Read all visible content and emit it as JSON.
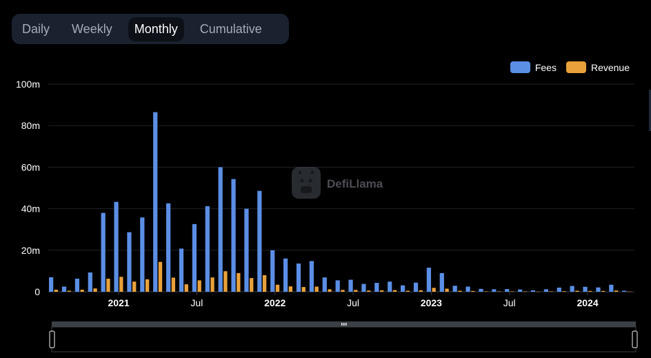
{
  "tabs": [
    {
      "label": "Daily",
      "active": false
    },
    {
      "label": "Weekly",
      "active": false
    },
    {
      "label": "Monthly",
      "active": true
    },
    {
      "label": "Cumulative",
      "active": false
    }
  ],
  "watermark": "DefiLlama",
  "colors": {
    "fees": "#5b8fe6",
    "revenue": "#e9a13b",
    "background": "#000000",
    "grid": "#1f2329"
  },
  "chart_data": {
    "type": "bar",
    "title": "",
    "xlabel": "",
    "ylabel": "",
    "ylim": [
      0,
      100000000
    ],
    "yticks": [
      {
        "value": 0,
        "label": "0"
      },
      {
        "value": 20000000,
        "label": "20m"
      },
      {
        "value": 40000000,
        "label": "40m"
      },
      {
        "value": 60000000,
        "label": "60m"
      },
      {
        "value": 80000000,
        "label": "80m"
      },
      {
        "value": 100000000,
        "label": "100m"
      }
    ],
    "xticks": [
      {
        "category": "2021-01",
        "label": "2021",
        "bold": true
      },
      {
        "category": "2021-07",
        "label": "Jul",
        "bold": false
      },
      {
        "category": "2022-01",
        "label": "2022",
        "bold": true
      },
      {
        "category": "2022-07",
        "label": "Jul",
        "bold": false
      },
      {
        "category": "2023-01",
        "label": "2023",
        "bold": true
      },
      {
        "category": "2023-07",
        "label": "Jul",
        "bold": false
      },
      {
        "category": "2024-01",
        "label": "2024",
        "bold": true
      }
    ],
    "legend_position": "top-right",
    "grid": true,
    "categories": [
      "2020-08",
      "2020-09",
      "2020-10",
      "2020-11",
      "2020-12",
      "2021-01",
      "2021-02",
      "2021-03",
      "2021-04",
      "2021-05",
      "2021-06",
      "2021-07",
      "2021-08",
      "2021-09",
      "2021-10",
      "2021-11",
      "2021-12",
      "2022-01",
      "2022-02",
      "2022-03",
      "2022-04",
      "2022-05",
      "2022-06",
      "2022-07",
      "2022-08",
      "2022-09",
      "2022-10",
      "2022-11",
      "2022-12",
      "2023-01",
      "2023-02",
      "2023-03",
      "2023-04",
      "2023-05",
      "2023-06",
      "2023-07",
      "2023-08",
      "2023-09",
      "2023-10",
      "2023-11",
      "2023-12",
      "2024-01",
      "2024-02",
      "2024-03",
      "2024-04"
    ],
    "series": [
      {
        "name": "Fees",
        "color": "#5b8fe6",
        "values": [
          7000000,
          2500000,
          6300000,
          9300000,
          38000000,
          43300000,
          28700000,
          35800000,
          86500000,
          42600000,
          20800000,
          32600000,
          41200000,
          60000000,
          54300000,
          40000000,
          48600000,
          20000000,
          16000000,
          13600000,
          14800000,
          6900000,
          5500000,
          5800000,
          3800000,
          4300000,
          4900000,
          3100000,
          4400000,
          11600000,
          9000000,
          2900000,
          2500000,
          1400000,
          1200000,
          1300000,
          1100000,
          700000,
          1200000,
          2000000,
          2800000,
          2400000,
          2100000,
          3400000,
          500000
        ]
      },
      {
        "name": "Revenue",
        "color": "#e9a13b",
        "values": [
          1000000,
          500000,
          1000000,
          1600000,
          6300000,
          7200000,
          4900000,
          6000000,
          14400000,
          6800000,
          3600000,
          5500000,
          6900000,
          9900000,
          9000000,
          6600000,
          8000000,
          3400000,
          2600000,
          2300000,
          2500000,
          1200000,
          900000,
          900000,
          600000,
          700000,
          800000,
          500000,
          700000,
          1900000,
          1500000,
          500000,
          400000,
          200000,
          200000,
          200000,
          200000,
          100000,
          200000,
          300000,
          500000,
          400000,
          400000,
          600000,
          100000
        ]
      }
    ]
  }
}
